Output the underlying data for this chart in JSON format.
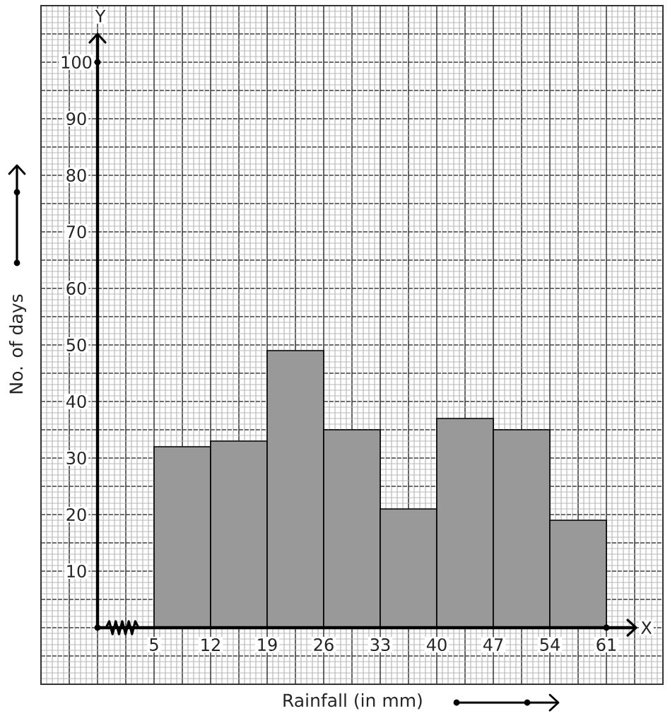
{
  "chart_data": {
    "type": "histogram",
    "xlabel": "Rainfall (in mm)",
    "ylabel": "No. of days",
    "bins": [
      5,
      12,
      19,
      26,
      33,
      40,
      47,
      54,
      61
    ],
    "values": [
      32,
      33,
      49,
      35,
      21,
      37,
      35,
      19
    ],
    "color": "#999999",
    "xlim": [
      -9,
      68
    ],
    "ylim": [
      -10,
      110
    ],
    "xticks": [
      5,
      12,
      19,
      26,
      33,
      40,
      47,
      54,
      61
    ],
    "yticks": [
      10,
      20,
      30,
      40,
      50,
      60,
      70,
      80,
      90,
      100
    ],
    "grid": true,
    "annotations": [
      "Y",
      "X"
    ]
  }
}
